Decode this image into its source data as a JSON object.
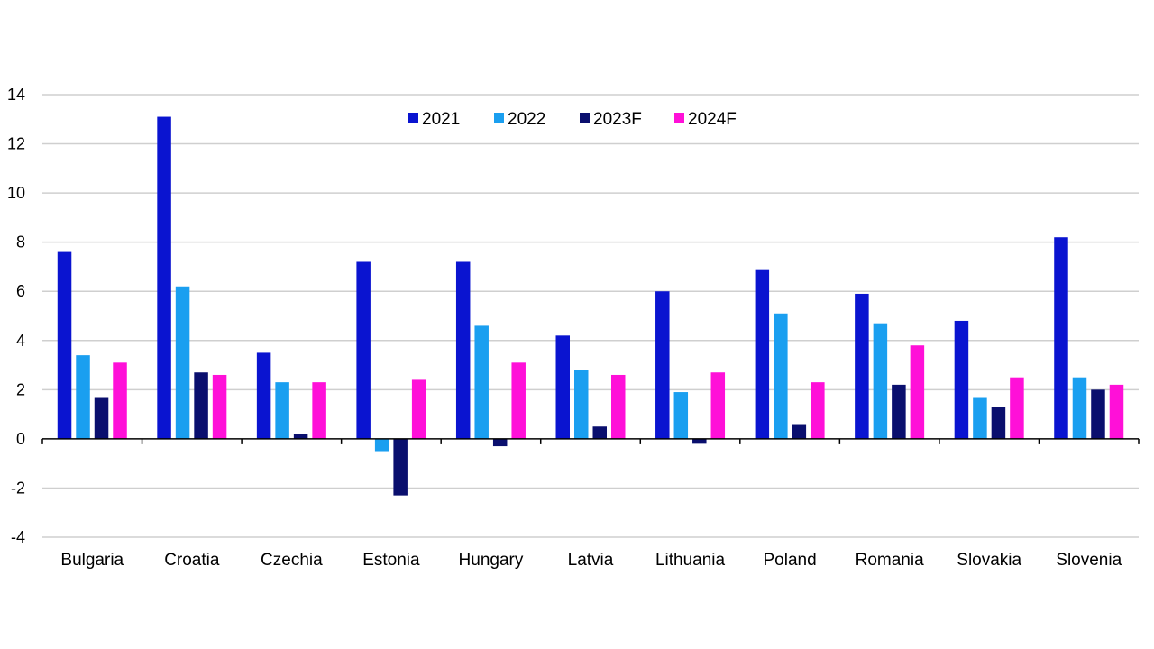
{
  "chart_data": {
    "type": "bar",
    "categories": [
      "Bulgaria",
      "Croatia",
      "Czechia",
      "Estonia",
      "Hungary",
      "Latvia",
      "Lithuania",
      "Poland",
      "Romania",
      "Slovakia",
      "Slovenia"
    ],
    "series": [
      {
        "name": "2021",
        "color": "#0a14d0",
        "values": [
          7.6,
          13.1,
          3.5,
          7.2,
          7.2,
          4.2,
          6.0,
          6.9,
          5.9,
          4.8,
          8.2
        ]
      },
      {
        "name": "2022",
        "color": "#1a9ff0",
        "values": [
          3.4,
          6.2,
          2.3,
          -0.5,
          4.6,
          2.8,
          1.9,
          5.1,
          4.7,
          1.7,
          2.5
        ]
      },
      {
        "name": "2023F",
        "color": "#0a0f6e",
        "values": [
          1.7,
          2.7,
          0.2,
          -2.3,
          -0.3,
          0.5,
          -0.2,
          0.6,
          2.2,
          1.3,
          2.0
        ]
      },
      {
        "name": "2024F",
        "color": "#ff10d8",
        "values": [
          3.1,
          2.6,
          2.3,
          2.4,
          3.1,
          2.6,
          2.7,
          2.3,
          3.8,
          2.5,
          2.2
        ]
      }
    ],
    "yticks": [
      "-4",
      "-2",
      "0",
      "2",
      "4",
      "6",
      "8",
      "10",
      "12",
      "14"
    ],
    "ylim": [
      -4,
      14
    ],
    "grid": true,
    "legend_position": "top-center",
    "title": "",
    "xlabel": "",
    "ylabel": ""
  }
}
